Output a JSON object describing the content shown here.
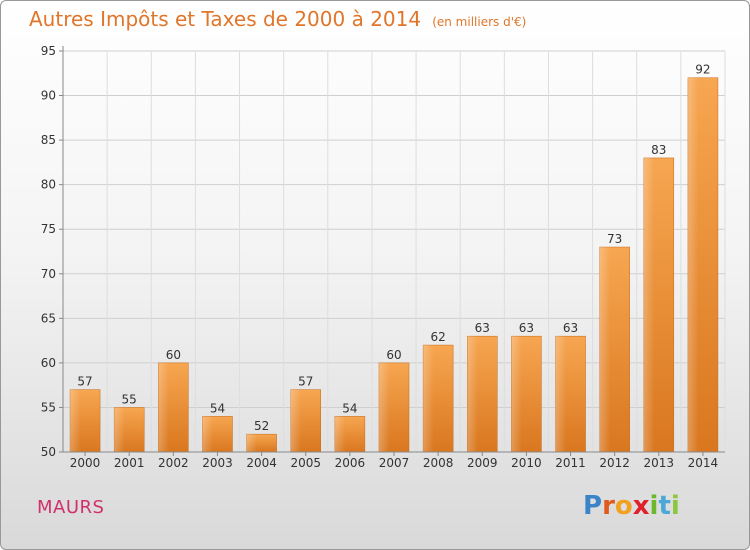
{
  "title": {
    "main": "Autres Impôts et Taxes de 2000 à 2014",
    "unit": "(en milliers d'€)"
  },
  "commune": "MAURS",
  "logo": {
    "text": "Proxiti"
  },
  "colors": {
    "bar_light": "#f7a651",
    "bar_dark": "#d9771f",
    "title": "#e0762a",
    "commune": "#d0306b"
  },
  "chart_data": {
    "type": "bar",
    "title": "Autres Impôts et Taxes de 2000 à 2014",
    "subtitle": "(en milliers d'€)",
    "categories": [
      "2000",
      "2001",
      "2002",
      "2003",
      "2004",
      "2005",
      "2006",
      "2007",
      "2008",
      "2009",
      "2010",
      "2011",
      "2012",
      "2013",
      "2014"
    ],
    "values": [
      57,
      55,
      60,
      54,
      52,
      57,
      54,
      60,
      62,
      63,
      63,
      63,
      73,
      83,
      92
    ],
    "ylim": [
      50,
      95
    ],
    "yticks": [
      50,
      55,
      60,
      65,
      70,
      75,
      80,
      85,
      90,
      95
    ],
    "grid": true,
    "xlabel": "",
    "ylabel": ""
  }
}
